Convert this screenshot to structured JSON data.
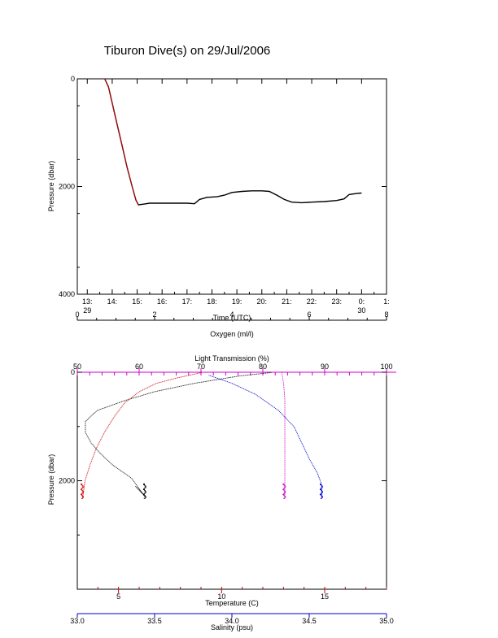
{
  "chart_data": [
    {
      "type": "line",
      "title": "Tiburon Dive(s) on 29/Jul/2006",
      "xlabel": "Time (UTC)",
      "ylabel": "Pressure (dbar)",
      "xlim": [
        12.6,
        25.0
      ],
      "ylim": [
        4000,
        0
      ],
      "x_ticks": [
        {
          "v": 13,
          "label": "13:",
          "sub": "29"
        },
        {
          "v": 14,
          "label": "14:",
          "sub": ""
        },
        {
          "v": 15,
          "label": "15:",
          "sub": ""
        },
        {
          "v": 16,
          "label": "16:",
          "sub": ""
        },
        {
          "v": 17,
          "label": "17:",
          "sub": ""
        },
        {
          "v": 18,
          "label": "18:",
          "sub": ""
        },
        {
          "v": 19,
          "label": "19:",
          "sub": ""
        },
        {
          "v": 20,
          "label": "20:",
          "sub": ""
        },
        {
          "v": 21,
          "label": "21:",
          "sub": ""
        },
        {
          "v": 22,
          "label": "22:",
          "sub": ""
        },
        {
          "v": 23,
          "label": "23:",
          "sub": ""
        },
        {
          "v": 24,
          "label": "0:",
          "sub": "30"
        },
        {
          "v": 25,
          "label": "1:",
          "sub": ""
        }
      ],
      "y_ticks": [
        0,
        2000,
        4000
      ],
      "series": [
        {
          "color": "#000000",
          "points": [
            [
              13.7,
              0
            ],
            [
              13.85,
              150
            ],
            [
              14.0,
              450
            ],
            [
              14.2,
              850
            ],
            [
              14.4,
              1250
            ],
            [
              14.6,
              1650
            ],
            [
              14.8,
              2000
            ],
            [
              14.95,
              2250
            ],
            [
              15.05,
              2340
            ],
            [
              15.2,
              2330
            ],
            [
              15.5,
              2310
            ],
            [
              16.0,
              2310
            ],
            [
              16.5,
              2310
            ],
            [
              17.0,
              2310
            ],
            [
              17.3,
              2320
            ],
            [
              17.5,
              2240
            ],
            [
              17.8,
              2200
            ],
            [
              18.2,
              2190
            ],
            [
              18.5,
              2160
            ],
            [
              18.8,
              2110
            ],
            [
              19.2,
              2090
            ],
            [
              19.6,
              2080
            ],
            [
              20.0,
              2080
            ],
            [
              20.3,
              2090
            ],
            [
              20.6,
              2160
            ],
            [
              20.9,
              2240
            ],
            [
              21.2,
              2290
            ],
            [
              21.6,
              2300
            ],
            [
              22.0,
              2290
            ],
            [
              22.5,
              2280
            ],
            [
              23.0,
              2260
            ],
            [
              23.3,
              2230
            ],
            [
              23.5,
              2150
            ],
            [
              23.8,
              2130
            ],
            [
              24.0,
              2120
            ]
          ]
        },
        {
          "color": "#cc0000",
          "points": [
            [
              13.7,
              0
            ],
            [
              13.85,
              150
            ],
            [
              14.0,
              450
            ],
            [
              14.2,
              850
            ],
            [
              14.4,
              1250
            ],
            [
              14.6,
              1650
            ],
            [
              14.8,
              2000
            ],
            [
              14.95,
              2250
            ],
            [
              15.05,
              2340
            ]
          ]
        }
      ]
    },
    {
      "type": "scatter",
      "ylabel": "Pressure (dbar)",
      "ylim": [
        4000,
        0
      ],
      "y_ticks": [
        0,
        2000
      ],
      "axes": {
        "oxygen": {
          "label": "Oxygen (ml/l)",
          "range": [
            0,
            8
          ],
          "ticks": [
            0,
            2,
            4,
            6,
            8
          ],
          "color": "#000000"
        },
        "light": {
          "label": "Light Transmission (%)",
          "range": [
            50,
            100
          ],
          "ticks": [
            50,
            60,
            70,
            80,
            90,
            100
          ],
          "color": "#cc00cc"
        },
        "temperature": {
          "label": "Temperature (C)",
          "range": [
            3,
            18
          ],
          "ticks": [
            5,
            10,
            15
          ],
          "color": "#cc0000"
        },
        "salinity": {
          "label": "Salinity (psu)",
          "range": [
            33.0,
            35.0
          ],
          "ticks": [
            "33.0",
            "33.5",
            "34.0",
            "34.5",
            "35.0"
          ],
          "color": "#0000cc"
        }
      },
      "series": [
        {
          "axis": "oxygen",
          "color": "#000000",
          "points": [
            [
              5.0,
              0
            ],
            [
              4.2,
              60
            ],
            [
              3.0,
              200
            ],
            [
              2.0,
              350
            ],
            [
              1.2,
              520
            ],
            [
              0.5,
              700
            ],
            [
              0.2,
              900
            ],
            [
              0.2,
              1100
            ],
            [
              0.35,
              1300
            ],
            [
              0.6,
              1500
            ],
            [
              0.9,
              1700
            ],
            [
              1.2,
              1850
            ],
            [
              1.4,
              1950
            ],
            [
              1.5,
              2050
            ],
            [
              1.6,
              2150
            ],
            [
              1.7,
              2250
            ],
            [
              1.5,
              2100
            ],
            [
              1.65,
              2200
            ],
            [
              1.75,
              2300
            ]
          ]
        },
        {
          "axis": "light",
          "color": "#cc00cc",
          "points": [
            [
              83,
              0
            ],
            [
              83.3,
              200
            ],
            [
              83.5,
              500
            ],
            [
              83.5,
              1000
            ],
            [
              83.5,
              1500
            ],
            [
              83.5,
              2000
            ],
            [
              83.5,
              2100
            ],
            [
              83.5,
              2300
            ]
          ]
        },
        {
          "axis": "temperature",
          "color": "#cc0000",
          "points": [
            [
              9.0,
              0
            ],
            [
              7.8,
              100
            ],
            [
              6.8,
              200
            ],
            [
              6.0,
              350
            ],
            [
              5.3,
              550
            ],
            [
              4.8,
              800
            ],
            [
              4.3,
              1100
            ],
            [
              3.9,
              1400
            ],
            [
              3.6,
              1700
            ],
            [
              3.35,
              2000
            ],
            [
              3.25,
              2300
            ]
          ]
        },
        {
          "axis": "salinity",
          "color": "#0000cc",
          "points": [
            [
              33.85,
              50
            ],
            [
              34.0,
              200
            ],
            [
              34.15,
              400
            ],
            [
              34.3,
              700
            ],
            [
              34.4,
              1000
            ],
            [
              34.45,
              1300
            ],
            [
              34.5,
              1600
            ],
            [
              34.55,
              1850
            ],
            [
              34.57,
              2000
            ],
            [
              34.58,
              2100
            ],
            [
              34.58,
              2300
            ]
          ]
        }
      ]
    }
  ]
}
